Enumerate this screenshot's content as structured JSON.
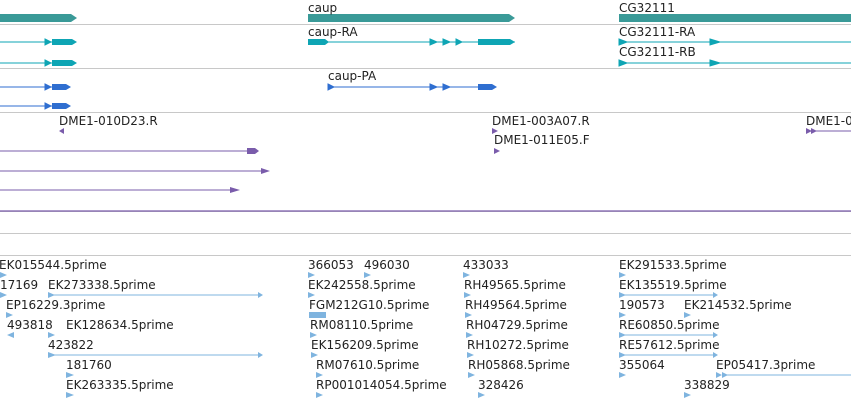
{
  "colors": {
    "gene": "#3a9a98",
    "transcript": "#0ea5b4",
    "protein": "#2f6ed0",
    "clone": "#7a5cab",
    "est": "#7fb4df",
    "divider": "#c8c8c8"
  },
  "tracks": {
    "genes": {
      "labels": [
        "caup",
        "CG32111"
      ]
    },
    "transcripts": {
      "labels": [
        "caup-RA",
        "CG32111-RA",
        "CG32111-RB"
      ]
    },
    "proteins": {
      "labels": [
        "caup-PA"
      ]
    },
    "clones": {
      "labels": [
        "DME1-010D23.R",
        "DME1-003A07.R",
        "DME1-011E05.F",
        "DME1-0"
      ]
    },
    "ests": {
      "labels": [
        "EK015544.5prime",
        "17169",
        "EK273338.5prime",
        "EP16229.3prime",
        "493818",
        "EK128634.5prime",
        "423822",
        "181760",
        "EK263335.5prime",
        "366053",
        "496030",
        "EK242558.5prime",
        "FGM212G10.5prime",
        "RM08110.5prime",
        "EK156209.5prime",
        "RM07610.5prime",
        "RP001014054.5prime",
        "433033",
        "RH49565.5prime",
        "RH49564.5prime",
        "RH04729.5prime",
        "RH10272.5prime",
        "RH05868.5prime",
        "328426",
        "EK291533.5prime",
        "EK135519.5prime",
        "190573",
        "EK214532.5prime",
        "RE60850.5prime",
        "RE57612.5prime",
        "355064",
        "EP05417.3prime",
        "338829"
      ]
    }
  }
}
